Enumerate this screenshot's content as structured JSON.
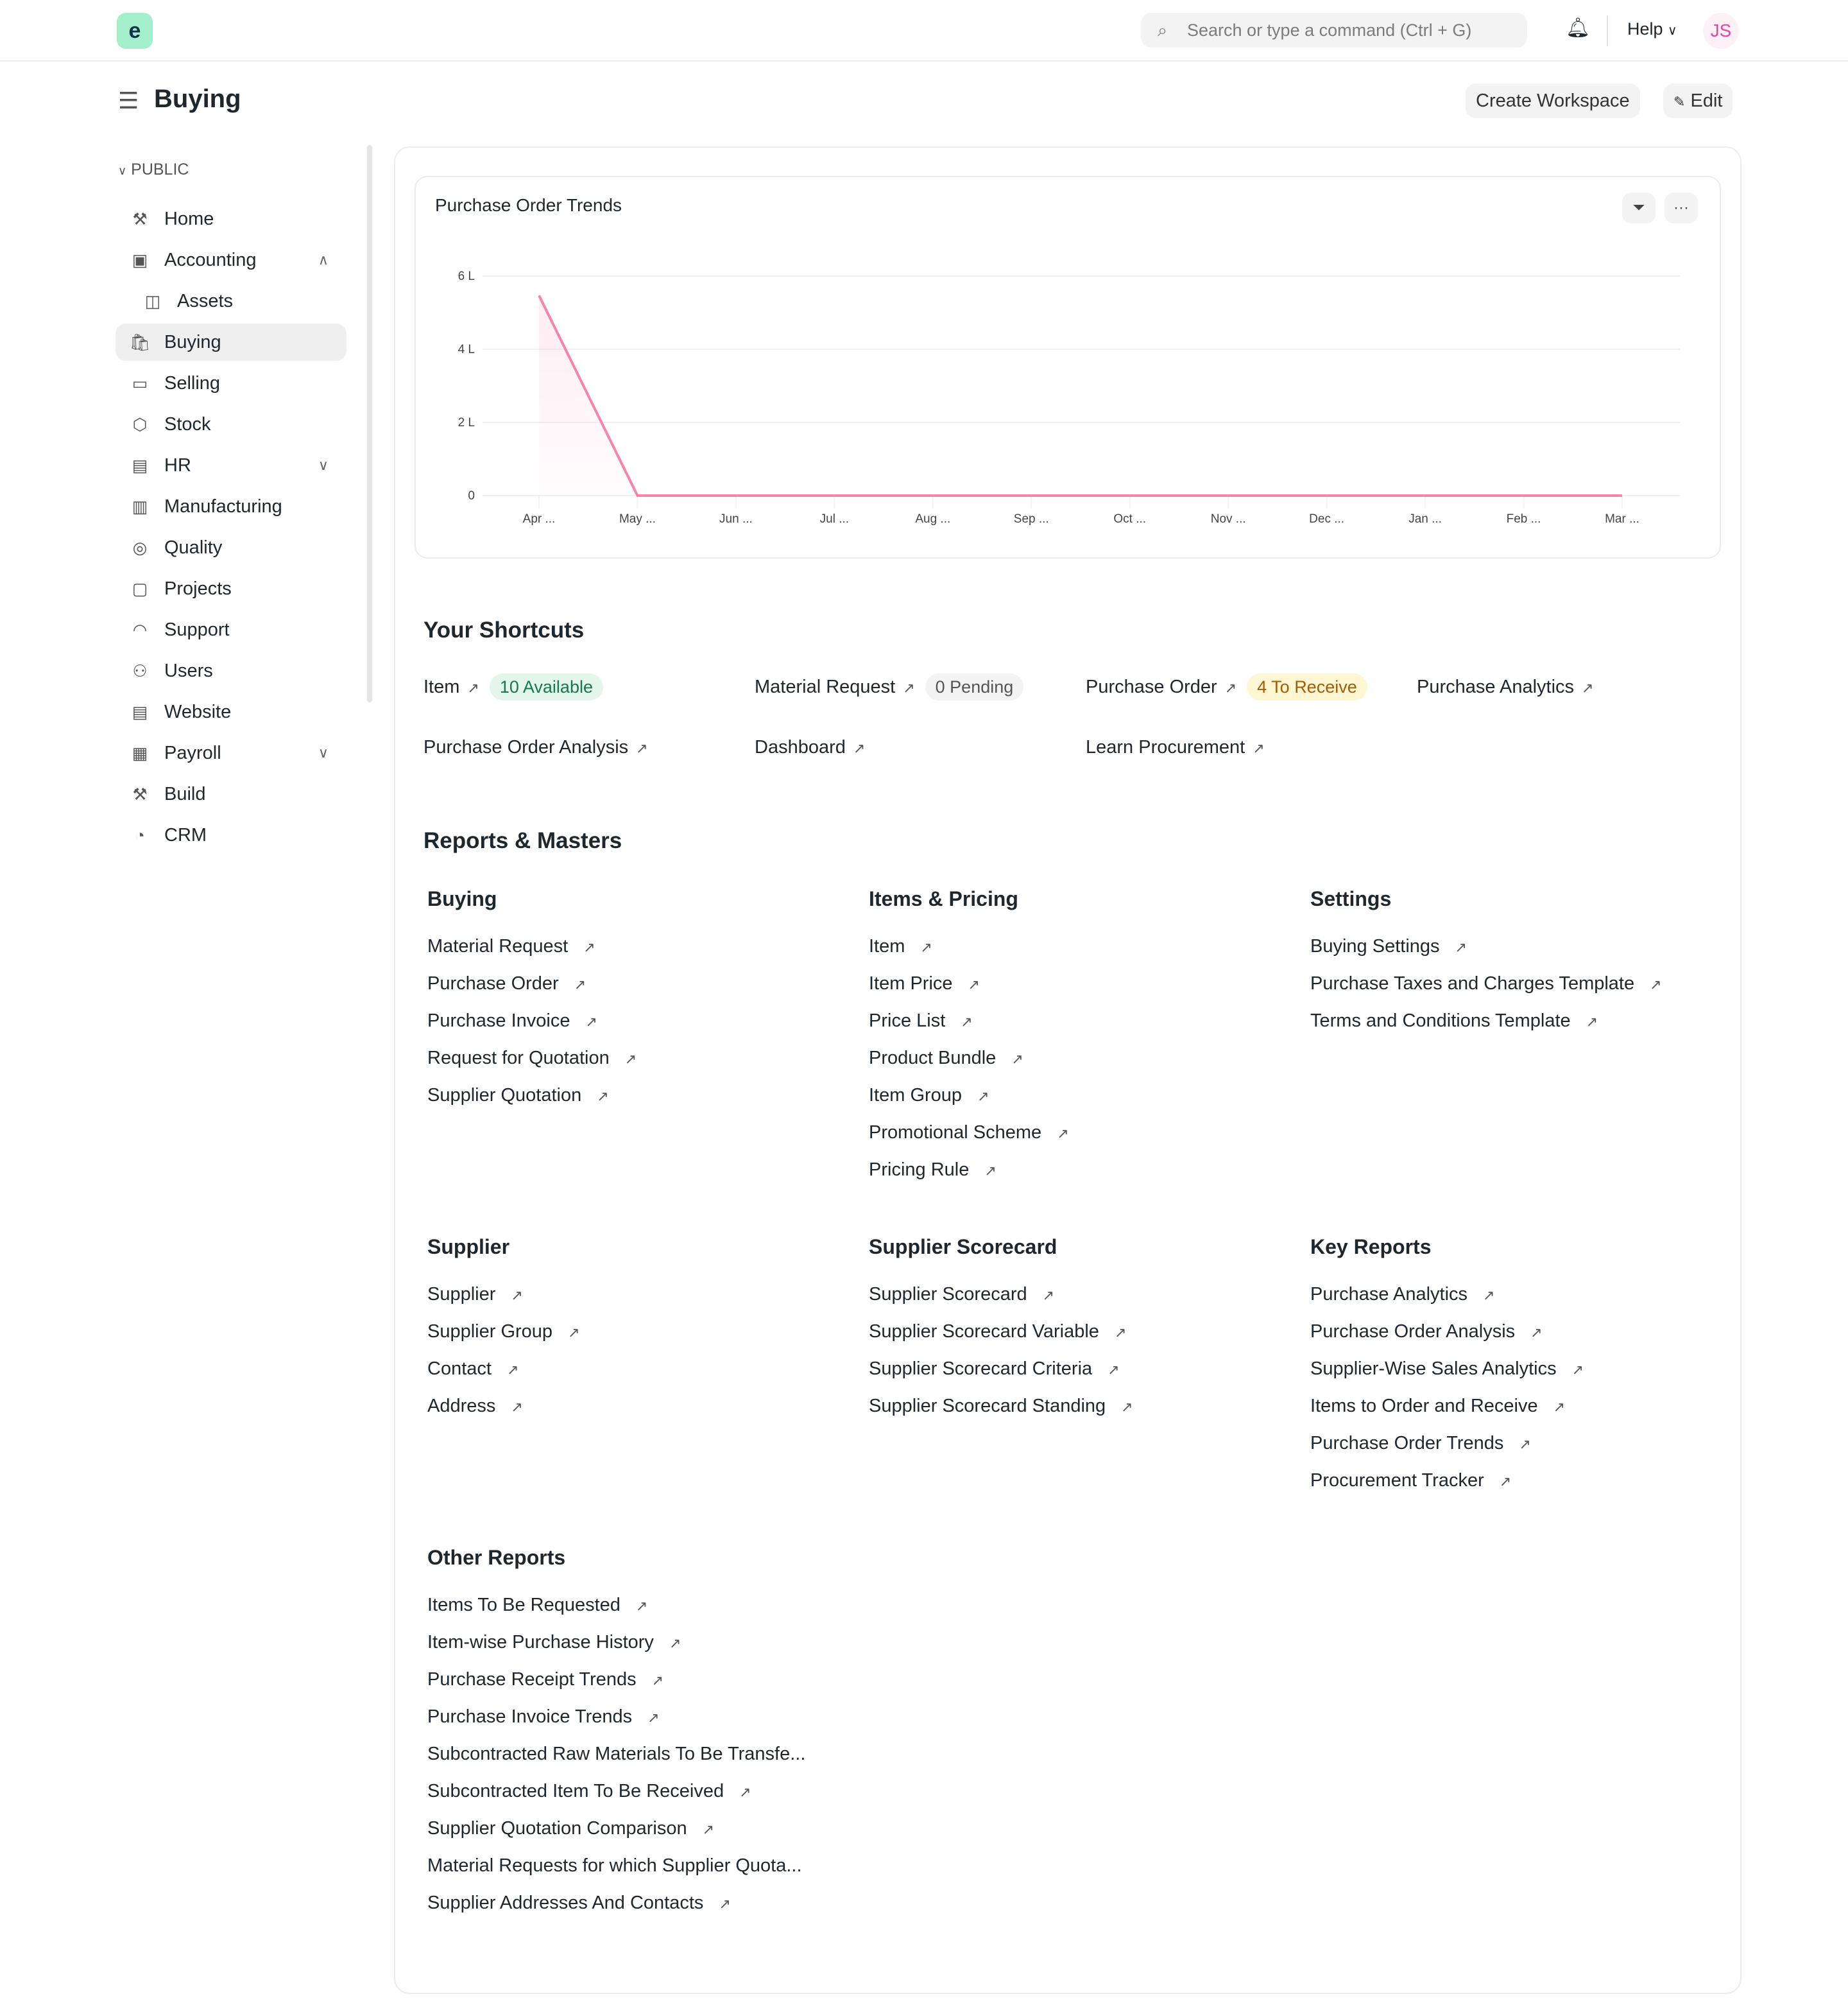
{
  "topbar": {
    "logo": "e",
    "search_placeholder": "Search or type a command (Ctrl + G)",
    "help": "Help",
    "avatar": "JS"
  },
  "page": {
    "title": "Buying",
    "create_workspace": "Create Workspace",
    "edit": "Edit"
  },
  "sidebar": {
    "section": "PUBLIC",
    "items": [
      {
        "label": "Home",
        "icon": "tools-icon"
      },
      {
        "label": "Accounting",
        "icon": "accounting-icon",
        "chevron": "up"
      },
      {
        "label": "Assets",
        "icon": "assets-icon",
        "child": true
      },
      {
        "label": "Buying",
        "icon": "buying-icon",
        "active": true
      },
      {
        "label": "Selling",
        "icon": "selling-icon"
      },
      {
        "label": "Stock",
        "icon": "stock-icon"
      },
      {
        "label": "HR",
        "icon": "hr-icon",
        "chevron": "down"
      },
      {
        "label": "Manufacturing",
        "icon": "manufacturing-icon"
      },
      {
        "label": "Quality",
        "icon": "quality-icon"
      },
      {
        "label": "Projects",
        "icon": "folder-icon"
      },
      {
        "label": "Support",
        "icon": "headset-icon"
      },
      {
        "label": "Users",
        "icon": "users-icon"
      },
      {
        "label": "Website",
        "icon": "website-icon"
      },
      {
        "label": "Payroll",
        "icon": "payroll-icon",
        "chevron": "down"
      },
      {
        "label": "Build",
        "icon": "build-icon"
      },
      {
        "label": "CRM",
        "icon": "crm-icon"
      }
    ]
  },
  "chart_data": {
    "type": "line",
    "title": "Purchase Order Trends",
    "categories": [
      "Apr ...",
      "May ...",
      "Jun ...",
      "Jul ...",
      "Aug ...",
      "Sep ...",
      "Oct ...",
      "Nov ...",
      "Dec ...",
      "Jan ...",
      "Feb ...",
      "Mar ..."
    ],
    "values": [
      547000,
      0,
      0,
      0,
      0,
      0,
      0,
      0,
      0,
      0,
      0,
      0
    ],
    "yticks": [
      {
        "v": 0,
        "label": "0"
      },
      {
        "v": 200000,
        "label": "2 L"
      },
      {
        "v": 400000,
        "label": "4 L"
      },
      {
        "v": 600000,
        "label": "6 L"
      }
    ],
    "ylim": [
      0,
      600000
    ],
    "grid": true,
    "color": "#f683ae"
  },
  "shortcuts": {
    "title": "Your Shortcuts",
    "items": [
      {
        "label": "Item",
        "badge": "10 Available",
        "badge_bg": "#e4f5e9",
        "badge_fg": "#16794c"
      },
      {
        "label": "Material Request",
        "badge": "0 Pending",
        "badge_bg": "#f3f3f3",
        "badge_fg": "#555555"
      },
      {
        "label": "Purchase Order",
        "badge": "4 To Receive",
        "badge_bg": "#fff7d3",
        "badge_fg": "#a35c00"
      },
      {
        "label": "Purchase Analytics"
      },
      {
        "label": "Purchase Order Analysis"
      },
      {
        "label": "Dashboard"
      },
      {
        "label": "Learn Procurement"
      }
    ]
  },
  "reports": {
    "title": "Reports & Masters",
    "cards": [
      {
        "title": "Buying",
        "links": [
          "Material Request",
          "Purchase Order",
          "Purchase Invoice",
          "Request for Quotation",
          "Supplier Quotation"
        ]
      },
      {
        "title": "Items & Pricing",
        "links": [
          "Item",
          "Item Price",
          "Price List",
          "Product Bundle",
          "Item Group",
          "Promotional Scheme",
          "Pricing Rule"
        ]
      },
      {
        "title": "Settings",
        "links": [
          "Buying Settings",
          "Purchase Taxes and Charges Template",
          "Terms and Conditions Template"
        ]
      },
      {
        "title": "Supplier",
        "links": [
          "Supplier",
          "Supplier Group",
          "Contact",
          "Address"
        ]
      },
      {
        "title": "Supplier Scorecard",
        "links": [
          "Supplier Scorecard",
          "Supplier Scorecard Variable",
          "Supplier Scorecard Criteria",
          "Supplier Scorecard Standing"
        ]
      },
      {
        "title": "Key Reports",
        "links": [
          "Purchase Analytics",
          "Purchase Order Analysis",
          "Supplier-Wise Sales Analytics",
          "Items to Order and Receive",
          "Purchase Order Trends",
          "Procurement Tracker"
        ]
      },
      {
        "title": "Other Reports",
        "links": [
          "Items To Be Requested",
          "Item-wise Purchase History",
          "Purchase Receipt Trends",
          "Purchase Invoice Trends",
          "Subcontracted Raw Materials To Be Transfe...",
          "Subcontracted Item To Be Received",
          "Supplier Quotation Comparison",
          "Material Requests for which Supplier Quota...",
          "Supplier Addresses And Contacts"
        ]
      }
    ]
  }
}
